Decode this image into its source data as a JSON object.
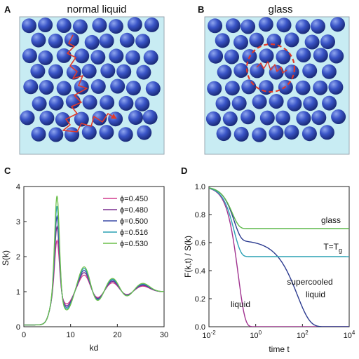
{
  "panels": {
    "A": {
      "label": "A",
      "title": "normal liquid"
    },
    "B": {
      "label": "B",
      "title": "glass"
    },
    "C": {
      "label": "C"
    },
    "D": {
      "label": "D"
    }
  },
  "colors": {
    "box_fill": "#c8ecf3",
    "box_stroke": "#9aa7b1",
    "sphere_light": "#8fa6ef",
    "sphere_mid": "#3a55c7",
    "sphere_dark": "#16256f",
    "trajectory": "#e03a2a"
  },
  "chart_data": [
    {
      "type": "line",
      "panel": "C",
      "xlabel": "kd",
      "ylabel": "S(k)",
      "xlim": [
        0,
        30
      ],
      "ylim": [
        0,
        4
      ],
      "xticks": [
        0,
        10,
        20,
        30
      ],
      "yticks": [
        0,
        1,
        2,
        3,
        4
      ],
      "legend_position": "top-right",
      "series": [
        {
          "name": "ϕ=0.450",
          "color": "#d23c8e",
          "peak": 2.55,
          "amp": 1.0
        },
        {
          "name": "ϕ=0.480",
          "color": "#7a2f8f",
          "peak": 2.95,
          "amp": 1.15
        },
        {
          "name": "ϕ=0.500",
          "color": "#3a4aa6",
          "peak": 3.25,
          "amp": 1.28
        },
        {
          "name": "ϕ=0.516",
          "color": "#2aa0b4",
          "peak": 3.55,
          "amp": 1.4
        },
        {
          "name": "ϕ=0.530",
          "color": "#6cbf4a",
          "peak": 3.85,
          "amp": 1.5
        }
      ]
    },
    {
      "type": "line",
      "panel": "D",
      "xlabel": "time t",
      "ylabel": "F(k,t) / S(k)",
      "x_scale": "log",
      "xlim": [
        0.01,
        10000
      ],
      "ylim": [
        0,
        1.0
      ],
      "xticks": [
        "10^-2",
        "10^0",
        "10^2",
        "10^4"
      ],
      "yticks": [
        0,
        0.2,
        0.4,
        0.6,
        0.8,
        1.0
      ],
      "series": [
        {
          "name": "liquid",
          "color": "#a0328f",
          "plateau": 0.0,
          "tau_beta": 0.18,
          "tau_alpha": 1.0
        },
        {
          "name": "supercooled liquid",
          "color": "#2b3a8f",
          "plateau": 0.62,
          "tau_beta": 0.12,
          "tau_alpha": 60
        },
        {
          "name": "T=Tg",
          "color": "#2aa0b4",
          "plateau": 0.5,
          "tau_beta": 0.12,
          "tau_alpha": 100000000
        },
        {
          "name": "glass",
          "color": "#5cb84a",
          "plateau": 0.7,
          "tau_beta": 0.1,
          "tau_alpha": 1000000000000.0
        }
      ],
      "labels": [
        {
          "series": "glass",
          "text": "glass"
        },
        {
          "series": "T=Tg",
          "text": "T=T",
          "subscript": "g"
        },
        {
          "series": "supercooled liquid",
          "line1": "supercooled",
          "line2": "liquid"
        },
        {
          "series": "liquid",
          "text": "liquid"
        }
      ]
    }
  ]
}
